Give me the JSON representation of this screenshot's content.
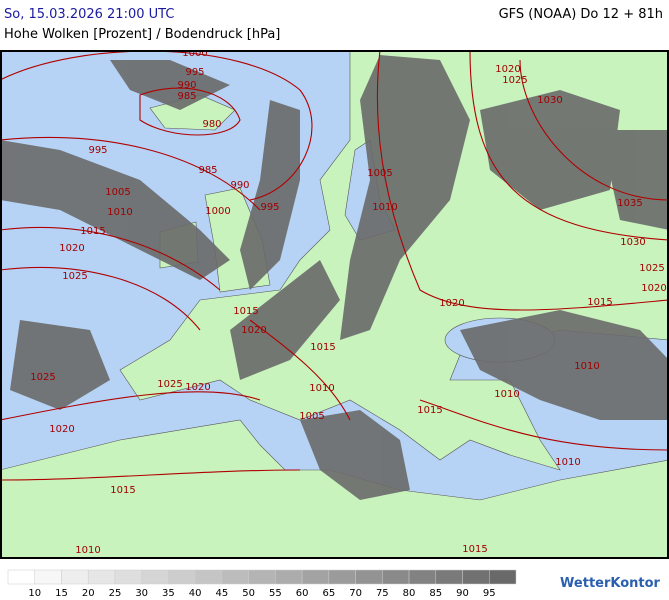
{
  "header": {
    "timestamp": "So, 15.03.2026 21:00 UTC",
    "model": "GFS (NOAA) Do 12 + 81h",
    "subtitle": "Hohe Wolken [Prozent] / Bodendruck [hPa]"
  },
  "isobar_labels": [
    1000,
    995,
    990,
    985,
    980,
    995,
    985,
    990,
    1005,
    1010,
    1000,
    995,
    1015,
    1020,
    1025,
    1005,
    1010,
    1015,
    1020,
    1015,
    1025,
    1020,
    1010,
    1025,
    1020,
    1005,
    1015,
    1015,
    1010,
    1015,
    1010,
    1010,
    1010,
    1015,
    1020,
    1020,
    1025,
    1030,
    1035,
    1030,
    1025,
    1020
  ],
  "legend": {
    "labels": [
      10,
      15,
      20,
      25,
      30,
      35,
      40,
      45,
      50,
      55,
      60,
      65,
      70,
      75,
      80,
      85,
      90,
      95
    ]
  },
  "brand": "WetterKontor"
}
